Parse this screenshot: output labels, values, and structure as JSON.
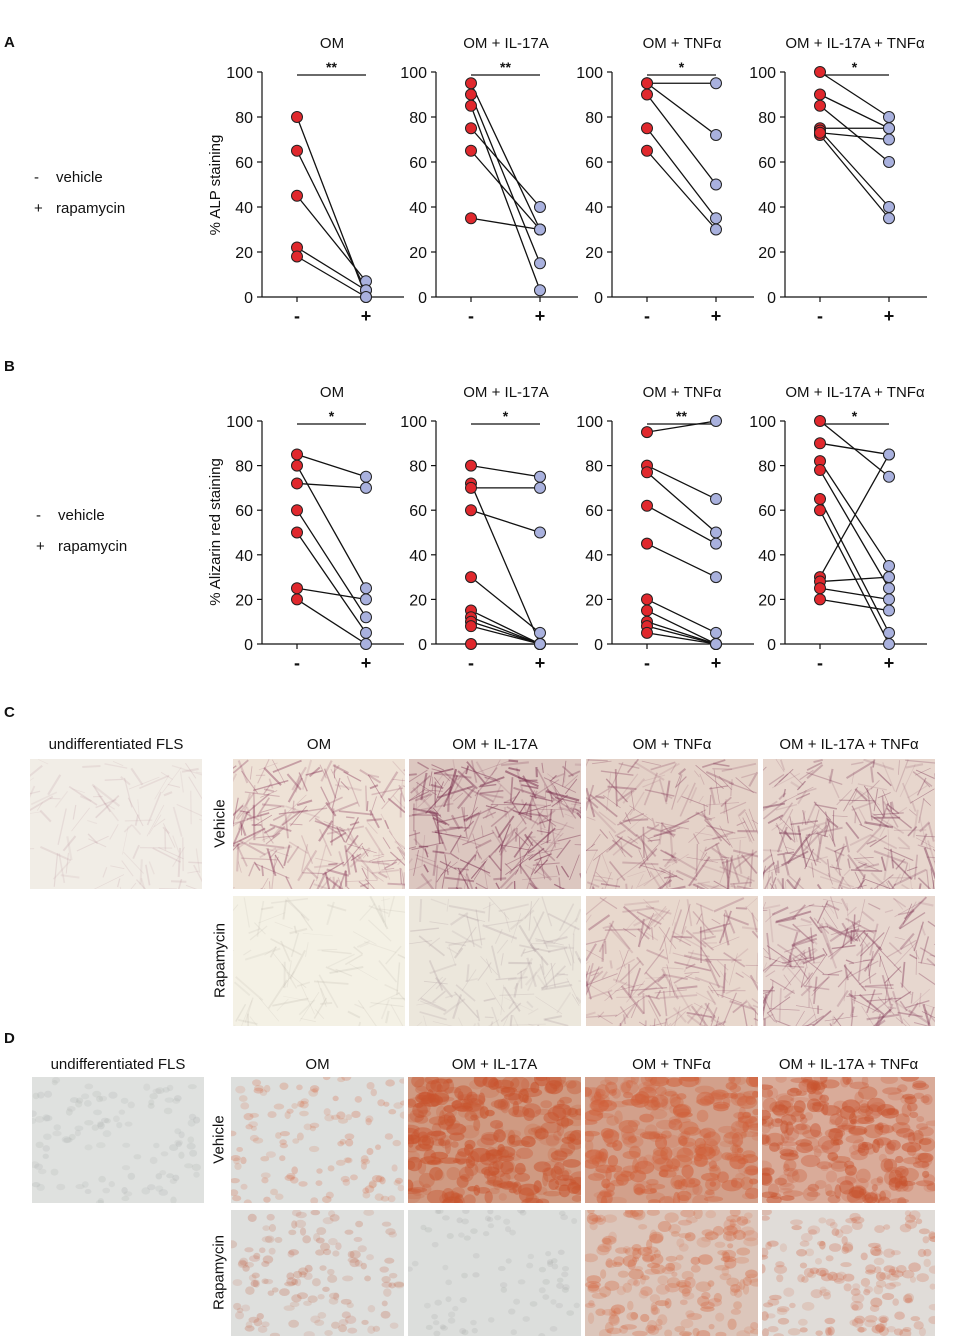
{
  "panels": {
    "A": {
      "letter": "A"
    },
    "B": {
      "letter": "B"
    },
    "C": {
      "letter": "C"
    },
    "D": {
      "letter": "D"
    }
  },
  "legend": {
    "vehicle_symbol": "-",
    "vehicle_label": "vehicle",
    "rapamycin_symbol": "+",
    "rapamycin_label": "rapamycin"
  },
  "colors": {
    "vehicle_point": "#e0282d",
    "rapamycin_point": "#a9b1de",
    "line": "#111111"
  },
  "chart_data": [
    {
      "type": "scatter",
      "panel": "A",
      "title": "OM",
      "ylabel": "% ALP staining",
      "ylim": [
        0,
        100
      ],
      "yticks": [
        0,
        20,
        40,
        60,
        80,
        100
      ],
      "categories": [
        "-",
        "+"
      ],
      "significance": "**",
      "pairs": [
        [
          80,
          0
        ],
        [
          65,
          3
        ],
        [
          45,
          7
        ],
        [
          22,
          3
        ],
        [
          18,
          0
        ]
      ]
    },
    {
      "type": "scatter",
      "panel": "A",
      "title": "OM + IL-17A",
      "ylabel": "",
      "ylim": [
        0,
        100
      ],
      "yticks": [
        0,
        20,
        40,
        60,
        80,
        100
      ],
      "categories": [
        "-",
        "+"
      ],
      "significance": "**",
      "pairs": [
        [
          95,
          30
        ],
        [
          90,
          15
        ],
        [
          85,
          3
        ],
        [
          75,
          40
        ],
        [
          65,
          30
        ],
        [
          35,
          30
        ]
      ]
    },
    {
      "type": "scatter",
      "panel": "A",
      "title": "OM + TNFα",
      "ylabel": "",
      "ylim": [
        0,
        100
      ],
      "yticks": [
        0,
        20,
        40,
        60,
        80,
        100
      ],
      "categories": [
        "-",
        "+"
      ],
      "significance": "*",
      "pairs": [
        [
          95,
          95
        ],
        [
          95,
          72
        ],
        [
          90,
          50
        ],
        [
          75,
          35
        ],
        [
          65,
          30
        ]
      ]
    },
    {
      "type": "scatter",
      "panel": "A",
      "title": "OM + IL-17A + TNFα",
      "ylabel": "",
      "ylim": [
        0,
        100
      ],
      "yticks": [
        0,
        20,
        40,
        60,
        80,
        100
      ],
      "categories": [
        "-",
        "+"
      ],
      "significance": "*",
      "pairs": [
        [
          100,
          80
        ],
        [
          90,
          75
        ],
        [
          85,
          60
        ],
        [
          75,
          75
        ],
        [
          74,
          40
        ],
        [
          72,
          35
        ],
        [
          73,
          70
        ]
      ]
    },
    {
      "type": "scatter",
      "panel": "B",
      "title": "OM",
      "ylabel": "% Alizarin red staining",
      "ylim": [
        0,
        100
      ],
      "yticks": [
        0,
        20,
        40,
        60,
        80,
        100
      ],
      "categories": [
        "-",
        "+"
      ],
      "significance": "*",
      "pairs": [
        [
          85,
          75
        ],
        [
          80,
          25
        ],
        [
          72,
          70
        ],
        [
          60,
          12
        ],
        [
          50,
          5
        ],
        [
          25,
          20
        ],
        [
          20,
          0
        ]
      ]
    },
    {
      "type": "scatter",
      "panel": "B",
      "title": "OM + IL-17A",
      "ylabel": "",
      "ylim": [
        0,
        100
      ],
      "yticks": [
        0,
        20,
        40,
        60,
        80,
        100
      ],
      "categories": [
        "-",
        "+"
      ],
      "significance": "*",
      "pairs": [
        [
          80,
          75
        ],
        [
          72,
          0
        ],
        [
          70,
          70
        ],
        [
          60,
          50
        ],
        [
          30,
          5
        ],
        [
          15,
          0
        ],
        [
          12,
          0
        ],
        [
          10,
          0
        ],
        [
          8,
          0
        ],
        [
          0,
          0
        ]
      ]
    },
    {
      "type": "scatter",
      "panel": "B",
      "title": "OM + TNFα",
      "ylabel": "",
      "ylim": [
        0,
        100
      ],
      "yticks": [
        0,
        20,
        40,
        60,
        80,
        100
      ],
      "categories": [
        "-",
        "+"
      ],
      "significance": "**",
      "pairs": [
        [
          95,
          100
        ],
        [
          80,
          65
        ],
        [
          77,
          50
        ],
        [
          62,
          45
        ],
        [
          45,
          30
        ],
        [
          20,
          5
        ],
        [
          15,
          0
        ],
        [
          10,
          0
        ],
        [
          8,
          0
        ],
        [
          5,
          0
        ]
      ]
    },
    {
      "type": "scatter",
      "panel": "B",
      "title": "OM + IL-17A + TNFα",
      "ylabel": "",
      "ylim": [
        0,
        100
      ],
      "yticks": [
        0,
        20,
        40,
        60,
        80,
        100
      ],
      "categories": [
        "-",
        "+"
      ],
      "significance": "*",
      "pairs": [
        [
          100,
          75
        ],
        [
          90,
          85
        ],
        [
          82,
          35
        ],
        [
          78,
          25
        ],
        [
          65,
          5
        ],
        [
          60,
          0
        ],
        [
          30,
          85
        ],
        [
          28,
          30
        ],
        [
          25,
          20
        ],
        [
          20,
          15
        ]
      ]
    }
  ],
  "micrographs": {
    "C": {
      "undiff_title": "undifferentiated FLS",
      "col_titles": [
        "OM",
        "OM + IL-17A",
        "OM + TNFα",
        "OM + IL-17A + TNFα"
      ],
      "row_labels": [
        "Vehicle",
        "Rapamycin"
      ],
      "stain": "ALP",
      "undiff": {
        "bg": "#f1ede6",
        "tint": "#b88f9a",
        "density": 0.18
      },
      "grid": [
        [
          {
            "bg": "#eee2d6",
            "tint": "#8d3f5e",
            "density": 0.65
          },
          {
            "bg": "#dcc7c0",
            "tint": "#7e3553",
            "density": 0.85
          },
          {
            "bg": "#e4d2c8",
            "tint": "#8b4560",
            "density": 0.6
          },
          {
            "bg": "#e7d6cd",
            "tint": "#83405c",
            "density": 0.7
          }
        ],
        [
          {
            "bg": "#f4f1e5",
            "tint": "#b0a89e",
            "density": 0.15
          },
          {
            "bg": "#ece7dc",
            "tint": "#a6939a",
            "density": 0.3
          },
          {
            "bg": "#e8d8cd",
            "tint": "#94506a",
            "density": 0.55
          },
          {
            "bg": "#e7d7cf",
            "tint": "#87405d",
            "density": 0.65
          }
        ]
      ]
    },
    "D": {
      "undiff_title": "undifferentiated FLS",
      "col_titles": [
        "OM",
        "OM + IL-17A",
        "OM + TNFα",
        "OM + IL-17A + TNFα"
      ],
      "row_labels": [
        "Vehicle",
        "Rapamycin"
      ],
      "stain": "Alizarin red",
      "undiff": {
        "bg": "#dfe1df",
        "tint": "#a9adab",
        "density": 0.2
      },
      "grid": [
        [
          {
            "bg": "#dddfdd",
            "tint": "#d6643d",
            "density": 0.25
          },
          {
            "bg": "#cf9a82",
            "tint": "#c8532d",
            "density": 0.9
          },
          {
            "bg": "#d2a08b",
            "tint": "#d0603a",
            "density": 0.85
          },
          {
            "bg": "#d9ab99",
            "tint": "#c8532e",
            "density": 0.8
          }
        ],
        [
          {
            "bg": "#dedfdd",
            "tint": "#c46a4e",
            "density": 0.3
          },
          {
            "bg": "#dcdedc",
            "tint": "#999d9b",
            "density": 0.1
          },
          {
            "bg": "#dcc6bb",
            "tint": "#d46a44",
            "density": 0.55
          },
          {
            "bg": "#e0dcd8",
            "tint": "#cf6543",
            "density": 0.4
          }
        ]
      ]
    }
  }
}
